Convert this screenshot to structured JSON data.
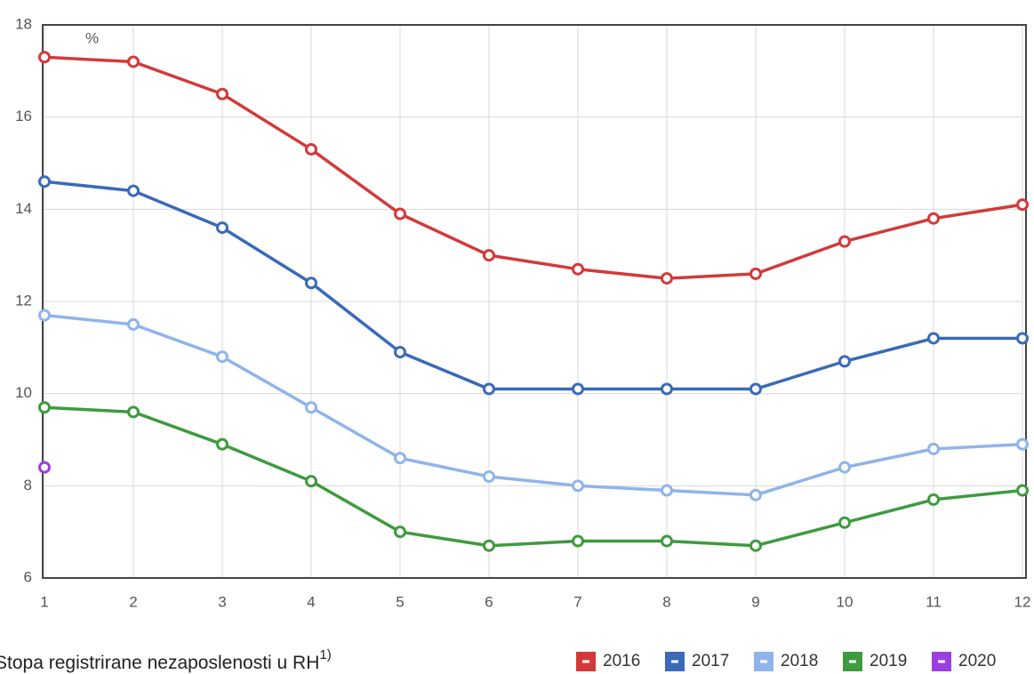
{
  "chart_data": {
    "type": "line",
    "title": "Stopa registrirane nezaposlenosti u RH",
    "title_note": "1)",
    "y_label": "%",
    "x": [
      1,
      2,
      3,
      4,
      5,
      6,
      7,
      8,
      9,
      10,
      11,
      12
    ],
    "xlim": [
      1,
      12
    ],
    "xticks": [
      1,
      2,
      3,
      4,
      5,
      6,
      7,
      8,
      9,
      10,
      11,
      12
    ],
    "ylim": [
      6,
      18
    ],
    "yticks": [
      6,
      8,
      10,
      12,
      14,
      16,
      18
    ],
    "grid": true,
    "legend": "bottom-right",
    "series": [
      {
        "name": "2016",
        "color": "#d23a3a",
        "values": [
          17.3,
          17.2,
          16.5,
          15.3,
          13.9,
          13.0,
          12.7,
          12.5,
          12.6,
          13.3,
          13.8,
          14.1
        ]
      },
      {
        "name": "2017",
        "color": "#3a6ab8",
        "values": [
          14.6,
          14.4,
          13.6,
          12.4,
          10.9,
          10.1,
          10.1,
          10.1,
          10.1,
          10.7,
          11.2,
          11.2
        ]
      },
      {
        "name": "2018",
        "color": "#8fb4ea",
        "values": [
          11.7,
          11.5,
          10.8,
          9.7,
          8.6,
          8.2,
          8.0,
          7.9,
          7.8,
          8.4,
          8.8,
          8.9
        ]
      },
      {
        "name": "2019",
        "color": "#3f9a3f",
        "values": [
          9.7,
          9.6,
          8.9,
          8.1,
          7.0,
          6.7,
          6.8,
          6.8,
          6.7,
          7.2,
          7.7,
          7.9
        ]
      },
      {
        "name": "2020",
        "color": "#9b3ee0",
        "values": [
          8.4,
          null,
          null,
          null,
          null,
          null,
          null,
          null,
          null,
          null,
          null,
          null
        ]
      }
    ]
  }
}
